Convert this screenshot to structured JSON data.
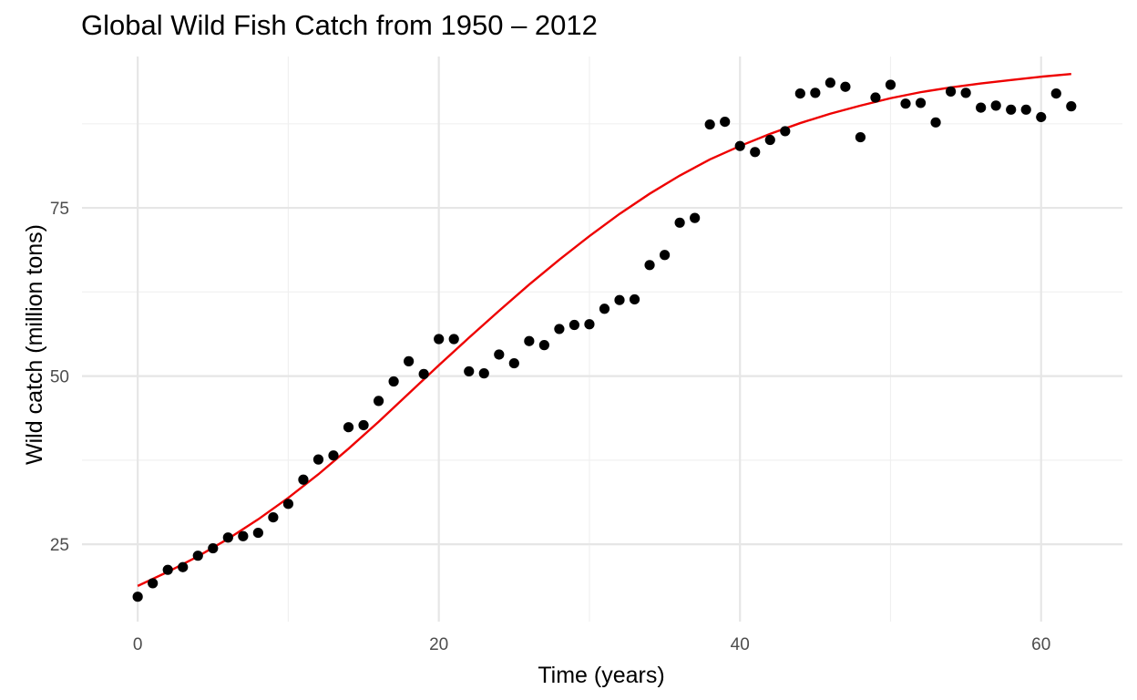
{
  "chart_data": {
    "type": "scatter",
    "title": "Global Wild Fish Catch from 1950 – 2012",
    "xlabel": "Time (years)",
    "ylabel": "Wild catch (million tons)",
    "xlim": [
      -3.7,
      65.4
    ],
    "ylim": [
      13.5,
      97.5
    ],
    "x_ticks": [
      0,
      20,
      40,
      60
    ],
    "y_ticks": [
      25,
      50,
      75
    ],
    "x_minor_ticks": [
      10,
      30,
      50
    ],
    "y_minor_ticks": [
      37.5,
      62.5,
      87.5
    ],
    "grid": true,
    "series": [
      {
        "kind": "points",
        "color": "#000000",
        "x": [
          0,
          1,
          2,
          3,
          4,
          5,
          6,
          7,
          8,
          9,
          10,
          11,
          12,
          13,
          14,
          15,
          16,
          17,
          18,
          19,
          20,
          21,
          22,
          23,
          24,
          25,
          26,
          27,
          28,
          29,
          30,
          31,
          32,
          33,
          34,
          35,
          36,
          37,
          38,
          39,
          40,
          41,
          42,
          43,
          44,
          45,
          46,
          47,
          48,
          49,
          50,
          51,
          52,
          53,
          54,
          55,
          56,
          57,
          58,
          59,
          60,
          61,
          62
        ],
        "y": [
          17.2,
          19.2,
          21.2,
          21.6,
          23.3,
          24.4,
          26.0,
          26.2,
          26.7,
          29.0,
          31.0,
          34.6,
          37.6,
          38.2,
          42.4,
          42.7,
          46.3,
          49.2,
          52.2,
          50.3,
          55.5,
          55.5,
          50.7,
          50.4,
          53.2,
          51.9,
          55.2,
          54.6,
          57.0,
          57.6,
          57.7,
          60.0,
          61.3,
          61.4,
          66.5,
          68.0,
          72.8,
          73.5,
          87.4,
          87.8,
          84.2,
          83.3,
          85.1,
          86.4,
          92.0,
          92.1,
          93.6,
          93.0,
          85.5,
          91.4,
          93.3,
          90.5,
          90.6,
          87.7,
          92.3,
          92.1,
          89.9,
          90.2,
          89.6,
          89.6,
          88.5,
          92.0,
          90.1
        ]
      },
      {
        "kind": "line",
        "color": "#ee0000",
        "x": [
          0,
          2,
          4,
          6,
          8,
          10,
          12,
          14,
          16,
          18,
          20,
          22,
          24,
          26,
          28,
          30,
          32,
          34,
          36,
          38,
          40,
          42,
          44,
          46,
          48,
          50,
          52,
          54,
          56,
          58,
          60,
          62
        ],
        "y": [
          18.8,
          20.9,
          23.2,
          25.8,
          28.7,
          31.9,
          35.4,
          39.2,
          43.2,
          47.4,
          51.6,
          55.7,
          59.7,
          63.6,
          67.3,
          70.8,
          74.1,
          77.1,
          79.8,
          82.2,
          84.2,
          86.0,
          87.6,
          89.0,
          90.2,
          91.3,
          92.2,
          92.9,
          93.5,
          94.0,
          94.5,
          94.9
        ]
      }
    ]
  }
}
